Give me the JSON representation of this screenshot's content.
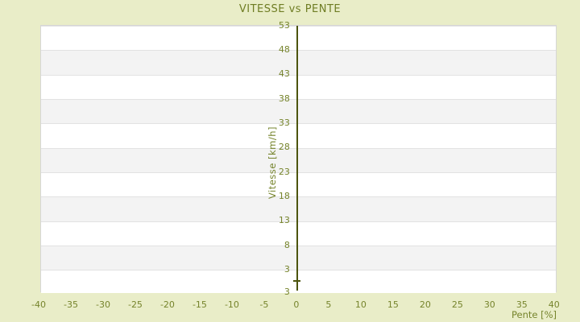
{
  "chart_data": {
    "type": "scatter",
    "title": "VITESSE vs PENTE",
    "xlabel": "Pente [%]",
    "ylabel": "Vitesse [km/h]",
    "x_ticks": [
      -40,
      -35,
      -30,
      -25,
      -20,
      -15,
      -10,
      -5,
      0,
      5,
      10,
      15,
      20,
      25,
      30,
      35,
      40
    ],
    "y_ticks": [
      3,
      8,
      13,
      18,
      23,
      28,
      33,
      38,
      43,
      48,
      53
    ],
    "y_axis_min_label": "3",
    "xlim": [
      -39.75,
      40.4
    ],
    "ylim": [
      -1.7,
      53
    ],
    "grid": "horizontal-stripes-at-y-ticks",
    "legend": "none",
    "y_axis_position_x": 0,
    "points": [
      {
        "x": 0,
        "y": 0.7
      }
    ],
    "marker_style": "horizontal-dash",
    "colors": {
      "background": "#e9edc8",
      "title_text": "#6f7d24",
      "tick_text": "#76842c",
      "axis_line": "#4c540e",
      "stripe_gray": "#f3f3f3",
      "gridline": "#e2e2e2",
      "plot_border": "#d6d6d6",
      "plot_background": "#ffffff"
    }
  }
}
